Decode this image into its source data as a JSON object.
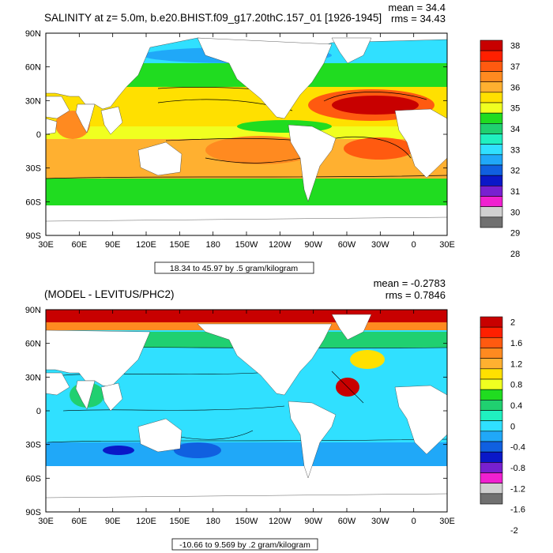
{
  "chart_data": [
    {
      "type": "heatmap",
      "title": "SALINITY at z=   5.0m, b.e20.BHIST.f09_g17.20thC.157_01 [1926-1945]",
      "stats": {
        "mean": "mean = 34.4",
        "rms": "rms = 34.43"
      },
      "note": "18.34 to 45.97 by .5 gram/kilogram",
      "x_ticks": [
        "30E",
        "60E",
        "90E",
        "120E",
        "150E",
        "180",
        "150W",
        "120W",
        "90W",
        "60W",
        "30W",
        "0",
        "30E"
      ],
      "y_ticks": [
        "90N",
        "60N",
        "30N",
        "0",
        "30S",
        "60S",
        "90S"
      ],
      "colorbar": {
        "labels": [
          "38",
          "37",
          "36",
          "35",
          "34",
          "33",
          "32",
          "31",
          "30",
          "29",
          "28"
        ],
        "colors": [
          "#c80000",
          "#ff2000",
          "#ff5a10",
          "#ff8a20",
          "#ffb030",
          "#ffe000",
          "#f0ff20",
          "#20dc20",
          "#20d070",
          "#20f0c0",
          "#30e0ff",
          "#20a8f8",
          "#1060e0",
          "#0a18c8",
          "#7820d0",
          "#f020d0",
          "#d0d0d0",
          "#707070"
        ]
      },
      "colors": {
        "land": "#ffffff",
        "frame": "#000000"
      }
    },
    {
      "type": "heatmap",
      "title": "(MODEL - LEVITUS/PHC2)",
      "stats": {
        "mean": "mean = -0.2783",
        "rms": "rms = 0.7846"
      },
      "note": "-10.66 to 9.569 by .2 gram/kilogram",
      "x_ticks": [
        "30E",
        "60E",
        "90E",
        "120E",
        "150E",
        "180",
        "150W",
        "120W",
        "90W",
        "60W",
        "30W",
        "0",
        "30E"
      ],
      "y_ticks": [
        "90N",
        "60N",
        "30N",
        "0",
        "30S",
        "60S",
        "90S"
      ],
      "colorbar": {
        "labels": [
          "2",
          "1.6",
          "1.2",
          "0.8",
          "0.4",
          "0",
          "-0.4",
          "-0.8",
          "-1.2",
          "-1.6",
          "-2"
        ],
        "colors": [
          "#c80000",
          "#ff2000",
          "#ff5a10",
          "#ff8a20",
          "#ffb030",
          "#ffe000",
          "#f0ff20",
          "#20dc20",
          "#20d070",
          "#20f0c0",
          "#30e0ff",
          "#20a8f8",
          "#1060e0",
          "#0a18c8",
          "#7820d0",
          "#f020d0",
          "#d0d0d0",
          "#707070"
        ]
      },
      "colors": {
        "land": "#ffffff",
        "frame": "#000000"
      }
    }
  ]
}
